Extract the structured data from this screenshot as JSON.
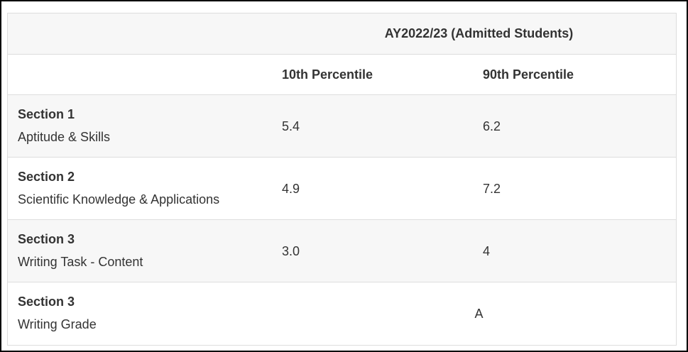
{
  "table": {
    "header": {
      "title": "AY2022/23 (Admitted Students)",
      "columns": [
        "10th Percentile",
        "90th Percentile"
      ]
    },
    "rows": [
      {
        "section": "Section 1",
        "name": "Aptitude & Skills",
        "values": [
          "5.4",
          "6.2"
        ]
      },
      {
        "section": "Section 2",
        "name": "Scientific Knowledge & Applications",
        "values": [
          "4.9",
          "7.2"
        ]
      },
      {
        "section": "Section 3",
        "name": "Writing Task - Content",
        "values": [
          "3.0",
          "4"
        ]
      },
      {
        "section": "Section 3",
        "name": "Writing Grade",
        "values": [
          "A"
        ]
      }
    ]
  }
}
